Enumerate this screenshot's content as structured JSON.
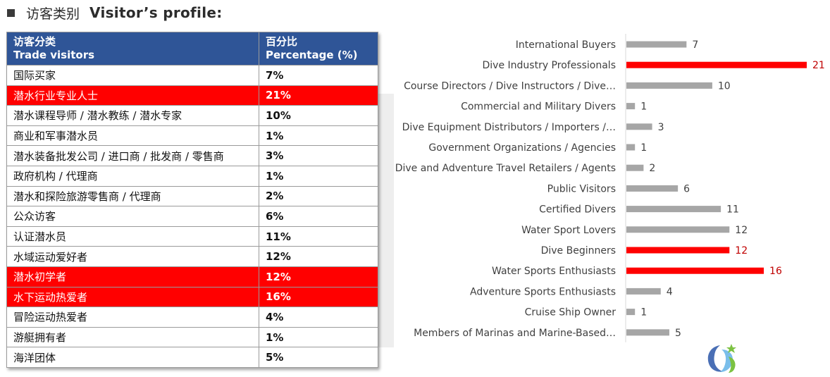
{
  "heading": {
    "cn": "访客类别",
    "en": "Visitor’s profile:"
  },
  "table": {
    "header_col1_cn": "访客分类",
    "header_col1_en": "Trade visitors",
    "header_col2_cn": "百分比",
    "header_col2_en": "Percentage (%)",
    "rows": [
      {
        "label": "国际买家",
        "pct": "7%",
        "highlight": false
      },
      {
        "label": "潜水行业专业人士",
        "pct": "21%",
        "highlight": true
      },
      {
        "label": "潜水课程导师 / 潜水教练 / 潜水专家",
        "pct": "10%",
        "highlight": false
      },
      {
        "label": "商业和军事潜水员",
        "pct": "1%",
        "highlight": false
      },
      {
        "label": "潜水装备批发公司 / 进口商 / 批发商 / 零售商",
        "pct": "3%",
        "highlight": false
      },
      {
        "label": "政府机构 / 代理商",
        "pct": "1%",
        "highlight": false
      },
      {
        "label": "潜水和探险旅游零售商 / 代理商",
        "pct": "2%",
        "highlight": false
      },
      {
        "label": "公众访客",
        "pct": "6%",
        "highlight": false
      },
      {
        "label": "认证潜水员",
        "pct": "11%",
        "highlight": false
      },
      {
        "label": "水域运动爱好者",
        "pct": "12%",
        "highlight": false
      },
      {
        "label": "潜水初学者",
        "pct": "12%",
        "highlight": true
      },
      {
        "label": "水下运动热爱者",
        "pct": "16%",
        "highlight": true
      },
      {
        "label": "冒险运动热爱者",
        "pct": "4%",
        "highlight": false
      },
      {
        "label": "游艇拥有者",
        "pct": "1%",
        "highlight": false
      },
      {
        "label": "海洋团体",
        "pct": "5%",
        "highlight": false
      }
    ]
  },
  "chart_data": {
    "type": "bar",
    "orientation": "horizontal",
    "categories": [
      "International Buyers",
      "Dive Industry Professionals",
      "Course Directors / Dive Instructors / Dive…",
      "Commercial and Military Divers",
      "Dive Equipment Distributors / Importers /…",
      "Government Organizations / Agencies",
      "Dive and Adventure Travel Retailers / Agents",
      "Public Visitors",
      "Certified Divers",
      "Water Sport Lovers",
      "Dive Beginners",
      "Water Sports Enthusiasts",
      "Adventure Sports Enthusiasts",
      "Cruise Ship Owner",
      "Members of Marinas and Marine-Based…"
    ],
    "values": [
      7,
      21,
      10,
      1,
      3,
      1,
      2,
      6,
      11,
      12,
      12,
      16,
      4,
      1,
      5
    ],
    "highlighted": [
      false,
      true,
      false,
      false,
      false,
      false,
      false,
      false,
      false,
      false,
      true,
      true,
      false,
      false,
      false
    ],
    "xlim": [
      0,
      21
    ],
    "grid": false,
    "legend": "none",
    "colors": {
      "default": "#a6a6a6",
      "highlight": "#ff0000",
      "highlight_label": "#c00000",
      "label": "#404040"
    }
  },
  "colors": {
    "table_header": "#2f5597",
    "highlight_row": "#ff0000"
  },
  "logo": {
    "icon": "company-logo-icon"
  }
}
